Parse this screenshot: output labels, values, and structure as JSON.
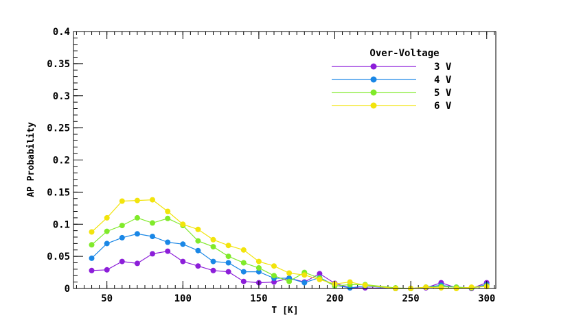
{
  "chart_data": {
    "type": "line",
    "xlabel": "T [K]",
    "ylabel": "AP Probability",
    "xlim": [
      28,
      306
    ],
    "ylim": [
      0,
      0.4
    ],
    "x_ticks": [
      50,
      100,
      150,
      200,
      250,
      300
    ],
    "x_tick_labels": [
      "50",
      "100",
      "150",
      "200",
      "250",
      "300"
    ],
    "y_ticks": [
      0,
      0.05,
      0.1,
      0.15,
      0.2,
      0.25,
      0.3,
      0.35,
      0.4
    ],
    "y_tick_labels": [
      "0",
      "0.05",
      "0.1",
      "0.15",
      "0.2",
      "0.25",
      "0.3",
      "0.35",
      "0.4"
    ],
    "legend": {
      "title": "Over-Voltage",
      "placement": "top-right"
    },
    "grid": false,
    "x": [
      40,
      50,
      60,
      70,
      80,
      90,
      100,
      110,
      120,
      130,
      140,
      150,
      160,
      170,
      180,
      190,
      200,
      210,
      220,
      240,
      250,
      260,
      270,
      280,
      290,
      300
    ],
    "series": [
      {
        "name": "3 V",
        "color": "#8c1ed9",
        "values": [
          0.028,
          0.029,
          0.042,
          0.039,
          0.054,
          0.058,
          0.042,
          0.035,
          0.028,
          0.026,
          0.011,
          0.009,
          0.01,
          0.016,
          0.01,
          0.023,
          0.008,
          0.001,
          0.001,
          0.0,
          0.0,
          0.001,
          0.009,
          0.001,
          0.0,
          0.009
        ]
      },
      {
        "name": "4 V",
        "color": "#1a87e6",
        "values": [
          0.047,
          0.07,
          0.079,
          0.085,
          0.081,
          0.072,
          0.069,
          0.059,
          0.042,
          0.04,
          0.026,
          0.026,
          0.016,
          0.016,
          0.009,
          0.017,
          0.005,
          0.001,
          0.004,
          0.0,
          0.0,
          0.002,
          0.005,
          0.002,
          0.001,
          0.006
        ]
      },
      {
        "name": "5 V",
        "color": "#80ea2a",
        "values": [
          0.068,
          0.089,
          0.098,
          0.11,
          0.102,
          0.109,
          0.098,
          0.074,
          0.065,
          0.05,
          0.04,
          0.032,
          0.02,
          0.011,
          0.025,
          0.016,
          0.004,
          0.006,
          0.006,
          0.001,
          0.0,
          0.002,
          0.003,
          0.002,
          0.001,
          0.004
        ]
      },
      {
        "name": "6 V",
        "color": "#f2e40c",
        "values": [
          0.088,
          0.11,
          0.136,
          0.137,
          0.138,
          0.12,
          0.1,
          0.092,
          0.076,
          0.067,
          0.06,
          0.042,
          0.035,
          0.024,
          0.021,
          0.014,
          0.007,
          0.01,
          0.005,
          0.0,
          0.0,
          0.002,
          0.001,
          0.0,
          0.002,
          0.003
        ]
      }
    ]
  }
}
